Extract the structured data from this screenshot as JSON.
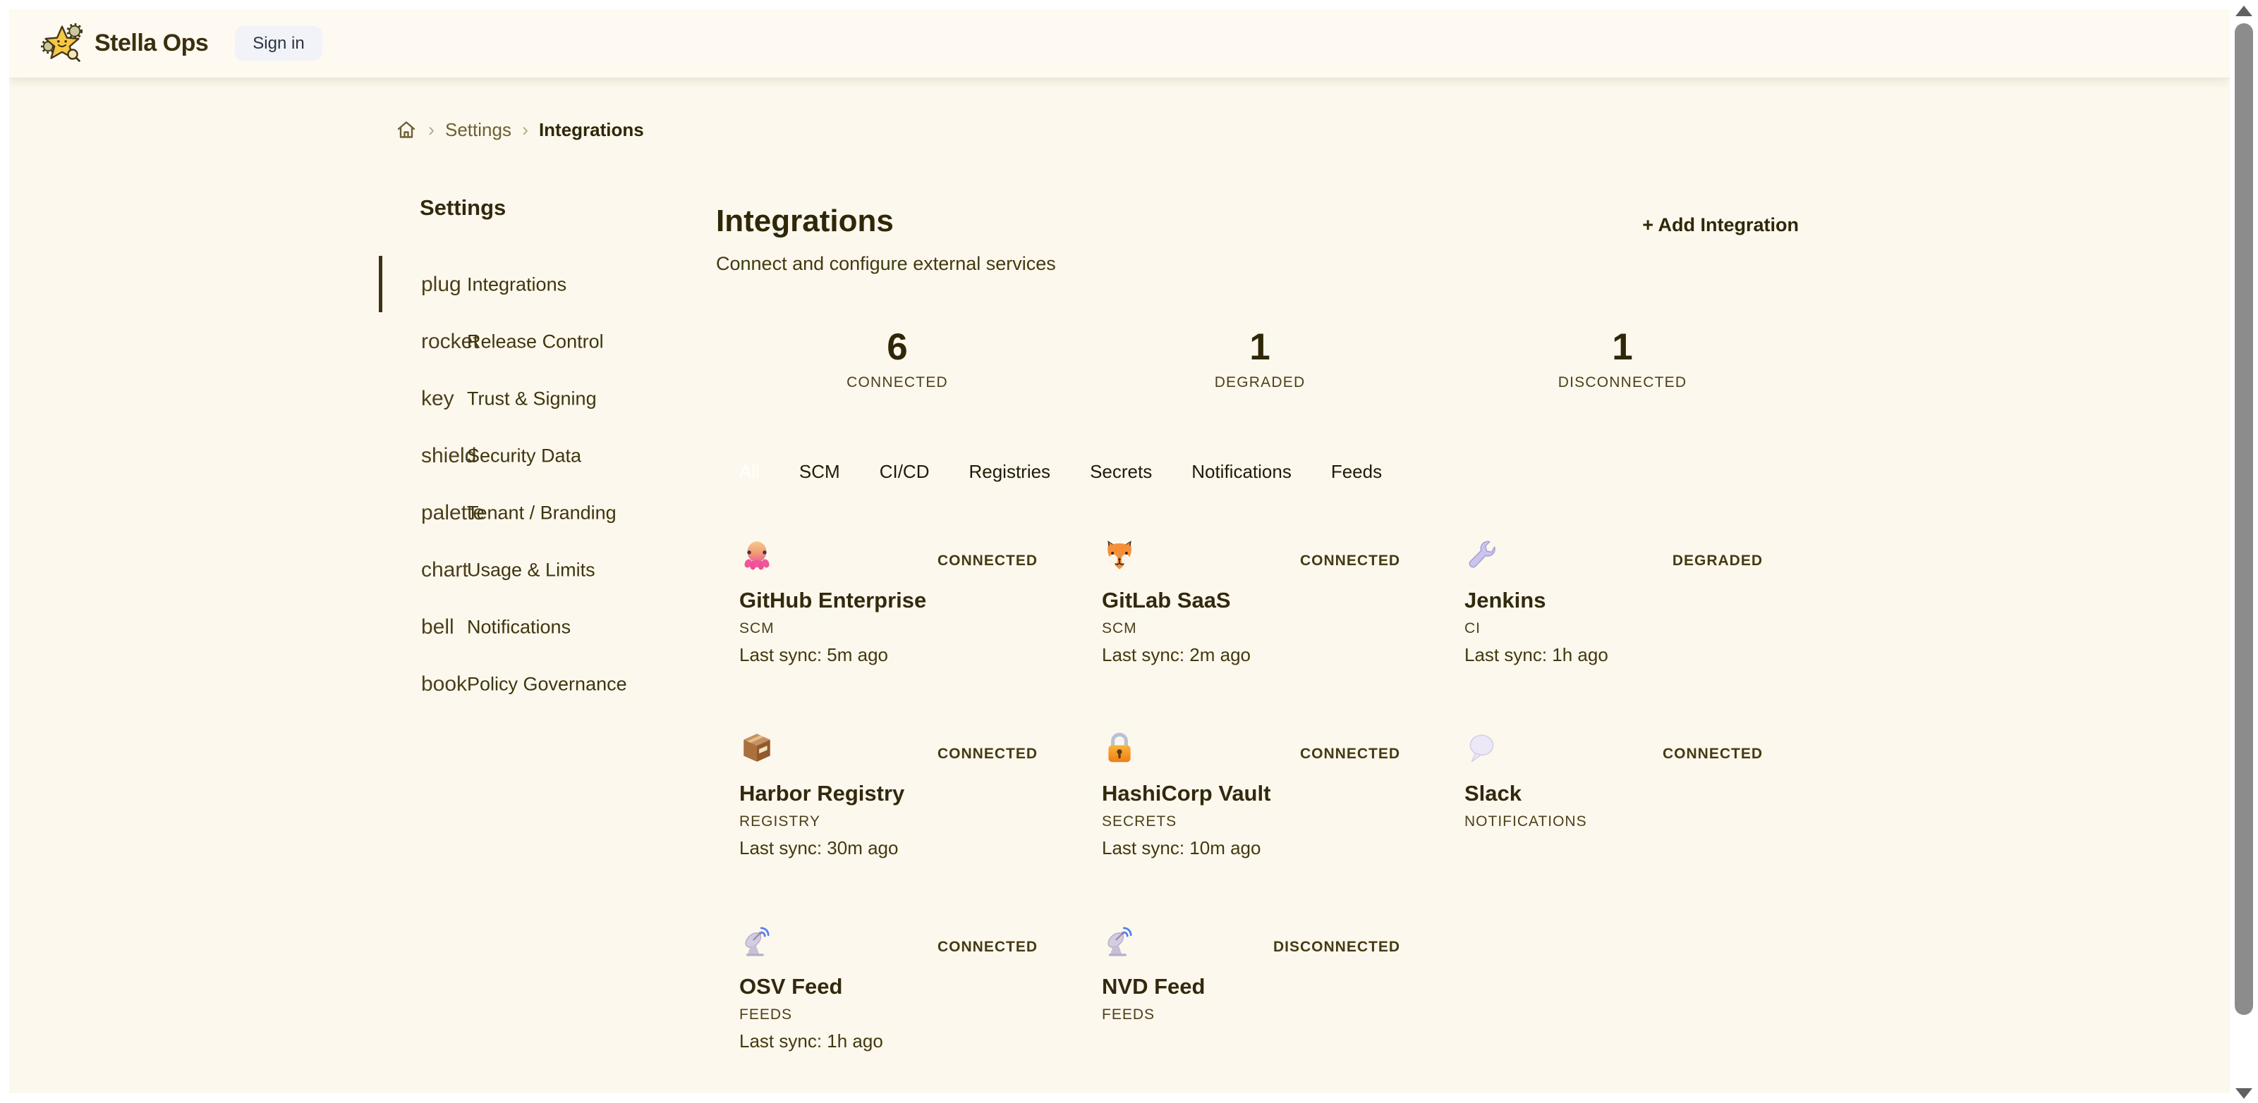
{
  "topbar": {
    "brand": "Stella Ops",
    "sign_in_label": "Sign in"
  },
  "breadcrumb": {
    "separator": "›",
    "settings_label": "Settings",
    "current_label": "Integrations"
  },
  "sidebar": {
    "heading": "Settings",
    "items": [
      {
        "icon_word": "plug",
        "label": "Integrations",
        "active": true
      },
      {
        "icon_word": "rocket",
        "label": "Release Control",
        "active": false
      },
      {
        "icon_word": "key",
        "label": "Trust & Signing",
        "active": false
      },
      {
        "icon_word": "shield",
        "label": "Security Data",
        "active": false
      },
      {
        "icon_word": "palette",
        "label": "Tenant / Branding",
        "active": false
      },
      {
        "icon_word": "chart",
        "label": "Usage & Limits",
        "active": false
      },
      {
        "icon_word": "bell",
        "label": "Notifications",
        "active": false
      },
      {
        "icon_word": "book",
        "label": "Policy Governance",
        "active": false
      }
    ]
  },
  "main": {
    "title": "Integrations",
    "subtitle": "Connect and configure external services",
    "add_button_label": "+ Add Integration",
    "stats": [
      {
        "value": "6",
        "label": "CONNECTED"
      },
      {
        "value": "1",
        "label": "DEGRADED"
      },
      {
        "value": "1",
        "label": "DISCONNECTED"
      }
    ],
    "tabs": [
      {
        "label": "All",
        "active": true
      },
      {
        "label": "SCM",
        "active": false
      },
      {
        "label": "CI/CD",
        "active": false
      },
      {
        "label": "Registries",
        "active": false
      },
      {
        "label": "Secrets",
        "active": false
      },
      {
        "label": "Notifications",
        "active": false
      },
      {
        "label": "Feeds",
        "active": false
      }
    ],
    "cards": [
      {
        "icon": "octopus-icon",
        "name": "GitHub Enterprise",
        "type": "SCM",
        "last_sync": "Last sync: 5m ago",
        "status": "CONNECTED"
      },
      {
        "icon": "fox-icon",
        "name": "GitLab SaaS",
        "type": "SCM",
        "last_sync": "Last sync: 2m ago",
        "status": "CONNECTED"
      },
      {
        "icon": "wrench-icon",
        "name": "Jenkins",
        "type": "CI",
        "last_sync": "Last sync: 1h ago",
        "status": "DEGRADED"
      },
      {
        "icon": "package-icon",
        "name": "Harbor Registry",
        "type": "REGISTRY",
        "last_sync": "Last sync: 30m ago",
        "status": "CONNECTED"
      },
      {
        "icon": "lock-icon",
        "name": "HashiCorp Vault",
        "type": "SECRETS",
        "last_sync": "Last sync: 10m ago",
        "status": "CONNECTED"
      },
      {
        "icon": "speech-balloon-icon",
        "name": "Slack",
        "type": "NOTIFICATIONS",
        "last_sync": "",
        "status": "CONNECTED"
      },
      {
        "icon": "satellite-icon",
        "name": "OSV Feed",
        "type": "FEEDS",
        "last_sync": "Last sync: 1h ago",
        "status": "CONNECTED"
      },
      {
        "icon": "satellite-icon",
        "name": "NVD Feed",
        "type": "FEEDS",
        "last_sync": "",
        "status": "DISCONNECTED"
      }
    ]
  },
  "colors": {
    "page_background": "#fdf8ed",
    "topbar_background": "#fffaf1",
    "text_dark": "#2f2708",
    "text_olive": "#4c3f1a",
    "active_tab_text": "#ffffff",
    "active_indicator": "#3e3312",
    "signin_background": "#f1f3f8",
    "scroll_thumb": "#8c8c8c"
  }
}
